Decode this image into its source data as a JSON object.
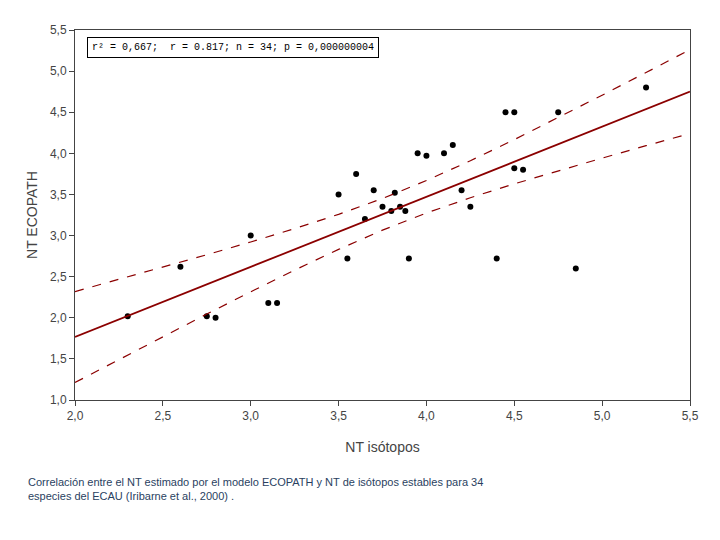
{
  "chart_data": {
    "type": "scatter",
    "xlabel": "NT isótopos",
    "ylabel": "NT ECOPATH",
    "xlim": [
      2.0,
      5.5
    ],
    "ylim": [
      1.0,
      5.5
    ],
    "xticks": [
      {
        "value": 2.0,
        "label": "2,0"
      },
      {
        "value": 2.5,
        "label": "2,5"
      },
      {
        "value": 3.0,
        "label": "3,0"
      },
      {
        "value": 3.5,
        "label": "3,5"
      },
      {
        "value": 4.0,
        "label": "4,0"
      },
      {
        "value": 4.5,
        "label": "4,5"
      },
      {
        "value": 5.0,
        "label": "5,0"
      },
      {
        "value": 5.5,
        "label": "5,5"
      }
    ],
    "yticks": [
      {
        "value": 1.0,
        "label": "1,0"
      },
      {
        "value": 1.5,
        "label": "1,5"
      },
      {
        "value": 2.0,
        "label": "2,0"
      },
      {
        "value": 2.5,
        "label": "2,5"
      },
      {
        "value": 3.0,
        "label": "3,0"
      },
      {
        "value": 3.5,
        "label": "3,5"
      },
      {
        "value": 4.0,
        "label": "4,0"
      },
      {
        "value": 4.5,
        "label": "4,5"
      },
      {
        "value": 5.0,
        "label": "5,0"
      },
      {
        "value": 5.5,
        "label": "5,5"
      }
    ],
    "grid": false,
    "annotations": [
      "r² = 0,667;  r = 0.817; n = 34; p = 0,000000004"
    ],
    "caption": [
      "Correlación entre el NT estimado por el modelo ECOPATH y NT de isótopos estables para 34",
      "especies del ECAU (Iribarne et al., 2000) ."
    ],
    "series": [
      {
        "type": "scatter",
        "marker": "circle",
        "color": "#000000",
        "x": [
          2.3,
          2.75,
          2.8,
          3.0,
          3.1,
          3.15,
          3.55,
          3.6,
          3.65,
          3.7,
          3.75,
          3.8,
          3.82,
          3.85,
          3.88,
          3.9,
          3.95,
          4.0,
          4.1,
          4.15,
          4.2,
          4.25,
          4.4,
          4.45,
          4.5,
          4.85,
          5.25,
          2.6,
          3.5,
          4.5,
          4.55,
          4.75
        ],
        "values": [
          2.02,
          2.02,
          2.0,
          3.0,
          2.18,
          2.18,
          2.72,
          3.75,
          3.2,
          3.55,
          3.35,
          3.3,
          3.52,
          3.35,
          3.3,
          2.72,
          4.0,
          3.97,
          4.0,
          4.1,
          3.55,
          3.35,
          2.72,
          4.5,
          3.82,
          2.6,
          4.8,
          2.62,
          3.5,
          4.5,
          3.8,
          4.5
        ]
      },
      {
        "type": "line",
        "line_style": "solid",
        "color": "#8B0000",
        "x": [
          2.0,
          2.25,
          2.5,
          2.75,
          3.0,
          3.25,
          3.5,
          3.75,
          4.0,
          4.25,
          4.5,
          4.75,
          5.0,
          5.25,
          5.5
        ],
        "values": [
          1.766,
          1.979,
          2.192,
          2.406,
          2.619,
          2.832,
          3.045,
          3.259,
          3.472,
          3.685,
          3.898,
          4.111,
          4.325,
          4.538,
          4.751
        ]
      },
      {
        "type": "line",
        "line_style": "dashed",
        "color": "#8B0000",
        "x": [
          2.0,
          2.25,
          2.5,
          2.75,
          3.0,
          3.25,
          3.5,
          3.75,
          4.0,
          4.25,
          4.5,
          4.75,
          5.0,
          5.25,
          5.5
        ],
        "values": [
          2.319,
          2.466,
          2.615,
          2.767,
          2.922,
          3.085,
          3.258,
          3.451,
          3.669,
          3.91,
          4.167,
          4.434,
          4.707,
          4.983,
          5.261
        ]
      },
      {
        "type": "line",
        "line_style": "dashed",
        "color": "#8B0000",
        "x": [
          2.0,
          2.25,
          2.5,
          2.75,
          3.0,
          3.25,
          3.5,
          3.75,
          4.0,
          4.25,
          4.5,
          4.75,
          5.0,
          5.25,
          5.5
        ],
        "values": [
          1.213,
          1.492,
          1.77,
          2.045,
          2.316,
          2.58,
          2.832,
          3.066,
          3.274,
          3.46,
          3.629,
          3.788,
          3.942,
          4.093,
          4.241
        ]
      }
    ]
  }
}
